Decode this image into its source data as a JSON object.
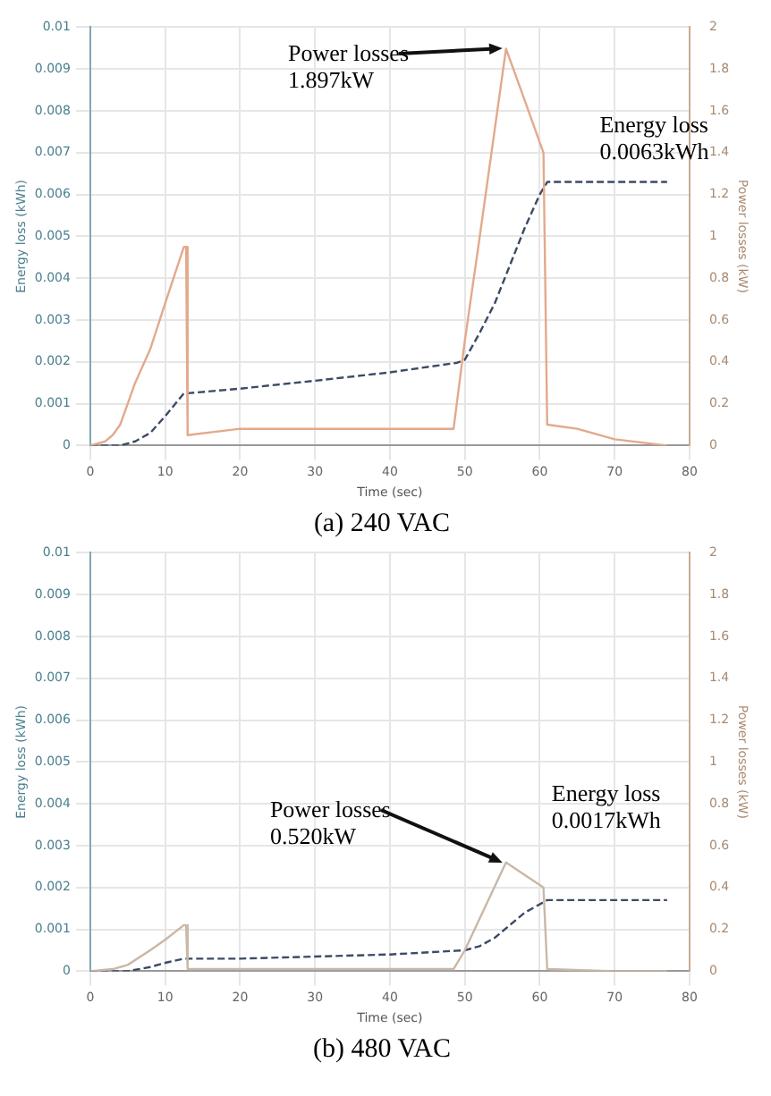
{
  "chart_data": [
    {
      "type": "line",
      "title": "(a) 240 VAC",
      "xlabel": "Time (sec)",
      "ylabel": "Energy loss (kWh)",
      "y2label": "Power losses (kW)",
      "xlim": [
        0,
        80
      ],
      "xticks": [
        0,
        10,
        20,
        30,
        40,
        50,
        60,
        70,
        80
      ],
      "ylim": [
        0,
        0.01
      ],
      "yticks": [
        0,
        0.001,
        0.002,
        0.003,
        0.004,
        0.005,
        0.006,
        0.007,
        0.008,
        0.009,
        0.01
      ],
      "y2lim": [
        0,
        2
      ],
      "y2ticks": [
        0,
        0.2,
        0.4,
        0.6,
        0.8,
        1,
        1.2,
        1.4,
        1.6,
        1.8,
        2
      ],
      "grid": true,
      "annotations": [
        "Power losses 1.897kW",
        "Energy loss 0.0063kWh"
      ],
      "series": [
        {
          "color": "#e3a98c",
          "axis": "y2",
          "x": [
            0,
            2,
            3,
            4,
            5,
            6,
            7,
            8,
            10,
            12.5,
            12.8,
            13,
            20,
            30,
            40,
            48.5,
            50,
            52,
            55.5,
            58,
            60.5,
            61,
            65,
            70,
            77
          ],
          "values": [
            0,
            0.02,
            0.05,
            0.1,
            0.2,
            0.3,
            0.38,
            0.46,
            0.68,
            0.95,
            0.95,
            0.05,
            0.08,
            0.08,
            0.08,
            0.08,
            0.5,
            1,
            1.897,
            1.65,
            1.4,
            0.1,
            0.08,
            0.03,
            0
          ]
        },
        {
          "color": "#3c4a66",
          "line_style": "dashed",
          "x": [
            0,
            4,
            6,
            8,
            10,
            12.5,
            13,
            20,
            30,
            40,
            49,
            50,
            52,
            54,
            56,
            58,
            60,
            61,
            65,
            70,
            77
          ],
          "values": [
            0,
            0,
            0.0001,
            0.0003,
            0.0007,
            0.00125,
            0.00125,
            0.00136,
            0.00155,
            0.00175,
            0.00198,
            0.00205,
            0.0027,
            0.0034,
            0.0043,
            0.0052,
            0.006,
            0.0063,
            0.0063,
            0.0063,
            0.0063
          ]
        }
      ]
    },
    {
      "type": "line",
      "title": "(b) 480 VAC",
      "xlabel": "Time (sec)",
      "ylabel": "Energy loss (kWh)",
      "y2label": "Power losses (kW)",
      "xlim": [
        0,
        80
      ],
      "xticks": [
        0,
        10,
        20,
        30,
        40,
        50,
        60,
        70,
        80
      ],
      "ylim": [
        0,
        0.01
      ],
      "yticks": [
        0,
        0.001,
        0.002,
        0.003,
        0.004,
        0.005,
        0.006,
        0.007,
        0.008,
        0.009,
        0.01
      ],
      "y2lim": [
        0,
        2
      ],
      "y2ticks": [
        0,
        0.2,
        0.4,
        0.6,
        0.8,
        1,
        1.2,
        1.4,
        1.6,
        1.8,
        2
      ],
      "grid": true,
      "annotations": [
        "Power losses 0.520kW",
        "Energy loss 0.0017kWh"
      ],
      "series": [
        {
          "color": "#c9b7a7",
          "axis": "y2",
          "x": [
            0,
            3,
            5,
            8,
            10,
            12.5,
            12.8,
            13,
            20,
            30,
            40,
            48.5,
            50,
            55.5,
            60.5,
            61,
            70,
            77
          ],
          "values": [
            0,
            0.01,
            0.03,
            0.1,
            0.15,
            0.22,
            0.22,
            0.01,
            0.01,
            0.01,
            0.01,
            0.01,
            0.1,
            0.52,
            0.4,
            0.01,
            0,
            0
          ]
        },
        {
          "color": "#3c4a66",
          "line_style": "dashed",
          "x": [
            0,
            5,
            8,
            10,
            12.5,
            13,
            20,
            30,
            40,
            50,
            52,
            54,
            56,
            58,
            61,
            65,
            70,
            77
          ],
          "values": [
            0,
            0,
            0.0001,
            0.0002,
            0.0003,
            0.0003,
            0.0003,
            0.00035,
            0.0004,
            0.0005,
            0.0006,
            0.0008,
            0.0011,
            0.0014,
            0.0017,
            0.0017,
            0.0017,
            0.0017
          ]
        }
      ]
    }
  ]
}
